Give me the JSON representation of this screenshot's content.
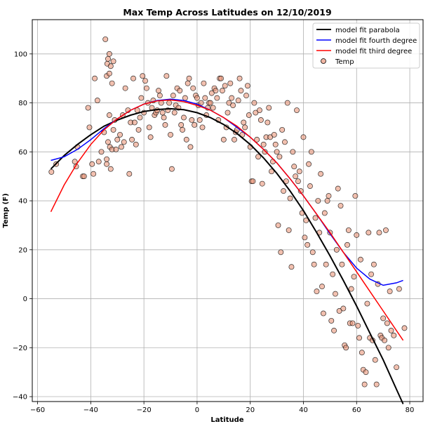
{
  "chart_data": {
    "type": "scatter",
    "title": "Max Temp Across Latitudes on 12/10/2019",
    "xlabel": "Latitude",
    "ylabel": "Temp (F)",
    "xlim": [
      -62,
      85
    ],
    "ylim": [
      -42,
      114
    ],
    "xticks": [
      -60,
      -40,
      -20,
      0,
      20,
      40,
      60,
      80
    ],
    "yticks": [
      -40,
      -20,
      0,
      20,
      40,
      60,
      80,
      100
    ],
    "grid": true,
    "legend_position": "top-right",
    "scatter": {
      "name": "Temp",
      "color": "#e9967a",
      "edge": "#000000",
      "points": [
        [
          -54.8,
          51.8
        ],
        [
          -53,
          55
        ],
        [
          -46,
          56
        ],
        [
          -45.5,
          54
        ],
        [
          -45,
          62
        ],
        [
          -43,
          50
        ],
        [
          -42.5,
          50
        ],
        [
          -41,
          78
        ],
        [
          -40.5,
          70
        ],
        [
          -39.5,
          55
        ],
        [
          -39,
          51
        ],
        [
          -38.5,
          90
        ],
        [
          -37.5,
          81
        ],
        [
          -37,
          56
        ],
        [
          -36,
          60
        ],
        [
          -35,
          68
        ],
        [
          -34.5,
          106
        ],
        [
          -34,
          91
        ],
        [
          -33.8,
          96
        ],
        [
          -33.5,
          98
        ],
        [
          -33,
          100
        ],
        [
          -33,
          92
        ],
        [
          -32.5,
          95
        ],
        [
          -32,
          88
        ],
        [
          -31.5,
          97
        ],
        [
          -34,
          55
        ],
        [
          -34,
          57
        ],
        [
          -33.5,
          64
        ],
        [
          -33,
          75
        ],
        [
          -32.8,
          62
        ],
        [
          -32.5,
          53
        ],
        [
          -32,
          61
        ],
        [
          -31.5,
          69
        ],
        [
          -31,
          73
        ],
        [
          -30.5,
          61
        ],
        [
          -30,
          65
        ],
        [
          -29,
          67
        ],
        [
          -28.5,
          62
        ],
        [
          -28,
          75
        ],
        [
          -27.5,
          64
        ],
        [
          -27,
          86
        ],
        [
          -26,
          77
        ],
        [
          -25.5,
          51
        ],
        [
          -25,
          72
        ],
        [
          -24.5,
          65
        ],
        [
          -24,
          90
        ],
        [
          -23.5,
          72
        ],
        [
          -23,
          63
        ],
        [
          -22.5,
          77
        ],
        [
          -22,
          69
        ],
        [
          -21.5,
          74
        ],
        [
          -21,
          82
        ],
        [
          -20.5,
          91
        ],
        [
          -20,
          76
        ],
        [
          -19.5,
          89
        ],
        [
          -19,
          86
        ],
        [
          -18.5,
          80
        ],
        [
          -18,
          70
        ],
        [
          -17.5,
          66
        ],
        [
          -17,
          78
        ],
        [
          -16.5,
          81
        ],
        [
          -16,
          75
        ],
        [
          -15.5,
          76
        ],
        [
          -15,
          77
        ],
        [
          -14.5,
          85
        ],
        [
          -14,
          83
        ],
        [
          -13.5,
          80
        ],
        [
          -13,
          76
        ],
        [
          -12.5,
          74
        ],
        [
          -12,
          71
        ],
        [
          -11.5,
          91
        ],
        [
          -11,
          77
        ],
        [
          -10.5,
          80
        ],
        [
          -10,
          67
        ],
        [
          -9.5,
          53
        ],
        [
          -9,
          83
        ],
        [
          -8.5,
          76
        ],
        [
          -8,
          79
        ],
        [
          -7.5,
          86
        ],
        [
          -7,
          78
        ],
        [
          -6.5,
          85
        ],
        [
          -6,
          71
        ],
        [
          -5.5,
          69
        ],
        [
          -5,
          74
        ],
        [
          -4.5,
          82
        ],
        [
          -4,
          65
        ],
        [
          -3.5,
          88
        ],
        [
          -3,
          90
        ],
        [
          -2.5,
          62
        ],
        [
          -2,
          73
        ],
        [
          -1.5,
          86
        ],
        [
          -1,
          71
        ],
        [
          -0.5,
          83
        ],
        [
          0,
          82
        ],
        [
          0.5,
          79
        ],
        [
          1,
          73
        ],
        [
          1.5,
          80
        ],
        [
          2,
          70
        ],
        [
          2.5,
          88
        ],
        [
          3,
          82
        ],
        [
          3.5,
          75
        ],
        [
          4,
          78
        ],
        [
          4.5,
          80
        ],
        [
          5,
          80
        ],
        [
          5.5,
          84
        ],
        [
          6,
          78
        ],
        [
          6.5,
          86
        ],
        [
          7,
          85
        ],
        [
          7.5,
          82
        ],
        [
          8,
          73
        ],
        [
          8.5,
          90
        ],
        [
          9,
          90
        ],
        [
          9.5,
          85
        ],
        [
          10,
          65
        ],
        [
          10.5,
          87
        ],
        [
          11,
          70
        ],
        [
          11.5,
          76
        ],
        [
          12,
          80
        ],
        [
          12.5,
          88
        ],
        [
          13,
          82
        ],
        [
          13.5,
          79
        ],
        [
          14,
          65
        ],
        [
          14.5,
          68
        ],
        [
          15,
          69
        ],
        [
          15.5,
          81
        ],
        [
          16,
          90
        ],
        [
          16.5,
          85
        ],
        [
          17,
          67
        ],
        [
          17.5,
          72
        ],
        [
          18,
          70
        ],
        [
          18.5,
          83
        ],
        [
          19,
          87
        ],
        [
          19.5,
          75
        ],
        [
          20,
          62
        ],
        [
          20.5,
          48
        ],
        [
          21,
          48
        ],
        [
          21.5,
          80
        ],
        [
          22,
          76
        ],
        [
          22.5,
          65
        ],
        [
          23,
          58
        ],
        [
          23.5,
          77
        ],
        [
          24,
          73
        ],
        [
          24.5,
          47
        ],
        [
          25,
          63
        ],
        [
          25.5,
          60
        ],
        [
          26,
          66
        ],
        [
          26.5,
          72
        ],
        [
          27,
          78
        ],
        [
          27.5,
          66
        ],
        [
          28,
          52
        ],
        [
          28.5,
          56
        ],
        [
          29,
          67
        ],
        [
          29.5,
          63
        ],
        [
          30,
          60
        ],
        [
          30.5,
          30
        ],
        [
          31,
          58
        ],
        [
          31.5,
          19
        ],
        [
          32,
          69
        ],
        [
          32.5,
          44
        ],
        [
          33,
          64
        ],
        [
          33.5,
          48
        ],
        [
          34,
          80
        ],
        [
          34.5,
          28
        ],
        [
          35,
          41
        ],
        [
          35.5,
          13
        ],
        [
          36,
          60
        ],
        [
          36.5,
          54
        ],
        [
          37,
          50
        ],
        [
          37.5,
          77
        ],
        [
          38,
          48
        ],
        [
          38.5,
          52
        ],
        [
          39,
          44
        ],
        [
          39.5,
          35
        ],
        [
          40,
          66
        ],
        [
          40.5,
          25
        ],
        [
          41,
          32
        ],
        [
          41.5,
          22
        ],
        [
          42,
          55
        ],
        [
          42.5,
          46
        ],
        [
          43,
          60
        ],
        [
          43.5,
          19
        ],
        [
          44,
          14
        ],
        [
          44.5,
          33
        ],
        [
          45,
          3
        ],
        [
          45.5,
          40
        ],
        [
          46,
          27
        ],
        [
          46.5,
          51
        ],
        [
          47,
          5
        ],
        [
          47.5,
          -6
        ],
        [
          48,
          35
        ],
        [
          48.5,
          14
        ],
        [
          49,
          40
        ],
        [
          49.5,
          42
        ],
        [
          50,
          27
        ],
        [
          50.5,
          -9
        ],
        [
          51,
          10
        ],
        [
          51.5,
          -13
        ],
        [
          52,
          2
        ],
        [
          52.5,
          20
        ],
        [
          53,
          45
        ],
        [
          53.5,
          -5
        ],
        [
          54,
          38
        ],
        [
          54.5,
          14
        ],
        [
          55,
          -4
        ],
        [
          55.5,
          -19
        ],
        [
          56,
          -20
        ],
        [
          56.5,
          22
        ],
        [
          57,
          28
        ],
        [
          57.5,
          -10
        ],
        [
          58,
          4
        ],
        [
          58.5,
          -10
        ],
        [
          59,
          9
        ],
        [
          59.5,
          42
        ],
        [
          60,
          26
        ],
        [
          60.5,
          -11
        ],
        [
          61,
          -16
        ],
        [
          61.5,
          16
        ],
        [
          62,
          -22
        ],
        [
          62.5,
          -29
        ],
        [
          63,
          -35
        ],
        [
          63.5,
          -30
        ],
        [
          64,
          -2
        ],
        [
          64.5,
          27
        ],
        [
          65,
          -16
        ],
        [
          65.5,
          10
        ],
        [
          66,
          -17
        ],
        [
          66.5,
          14
        ],
        [
          67,
          -25
        ],
        [
          67.5,
          -35
        ],
        [
          68,
          6
        ],
        [
          68.5,
          27
        ],
        [
          69,
          -15
        ],
        [
          69.5,
          -16
        ],
        [
          70,
          -8
        ],
        [
          70.5,
          -17
        ],
        [
          71,
          28
        ],
        [
          71.5,
          -10
        ],
        [
          72,
          -20
        ],
        [
          72.5,
          3
        ],
        [
          73,
          -13
        ],
        [
          74,
          -15
        ],
        [
          75,
          -28
        ],
        [
          76,
          4
        ],
        [
          78,
          -12
        ]
      ]
    },
    "series": [
      {
        "name": "model fit parabola",
        "color": "#000000",
        "x": [
          -55,
          -50,
          -45,
          -40,
          -35,
          -30,
          -25,
          -20,
          -15,
          -10,
          -5,
          0,
          5,
          10,
          15,
          20,
          25,
          30,
          35,
          40,
          45,
          50,
          55,
          60,
          65,
          70,
          75,
          77.5
        ],
        "y": [
          53,
          58.5,
          63,
          67,
          70.5,
          73,
          75,
          76.5,
          77.3,
          77.6,
          77.2,
          76,
          74,
          71.2,
          67.5,
          63,
          57.5,
          51.2,
          44,
          36,
          27,
          17.5,
          7.5,
          -3,
          -14,
          -25,
          -37,
          -43
        ]
      },
      {
        "name": "model fit fourth degree",
        "color": "#0000ff",
        "x": [
          -55,
          -50,
          -45,
          -40,
          -35,
          -30,
          -25,
          -20,
          -15,
          -10,
          -5,
          0,
          5,
          10,
          15,
          20,
          25,
          30,
          35,
          40,
          45,
          50,
          55,
          60,
          65,
          70,
          75,
          77.5
        ],
        "y": [
          56.5,
          58,
          61,
          65,
          69.5,
          73.5,
          77,
          79.5,
          81,
          81.5,
          81,
          79.5,
          77,
          74,
          70,
          66,
          61,
          55.5,
          49,
          42,
          34.5,
          26.5,
          19,
          12.5,
          8,
          5.5,
          6.5,
          7.5
        ]
      },
      {
        "name": "model fit third degree",
        "color": "#ff0000",
        "x": [
          -55,
          -50,
          -45,
          -40,
          -35,
          -30,
          -25,
          -20,
          -15,
          -10,
          -5,
          0,
          5,
          10,
          15,
          20,
          25,
          30,
          35,
          40,
          45,
          50,
          55,
          60,
          65,
          70,
          75,
          77.5
        ],
        "y": [
          35.5,
          46.5,
          55.5,
          63,
          69,
          73.5,
          77,
          79.5,
          80.8,
          81.2,
          80.5,
          79,
          77,
          74,
          70.5,
          66,
          61,
          55.5,
          49,
          42,
          34.5,
          27,
          19,
          11,
          3,
          -5,
          -13,
          -17
        ]
      }
    ]
  }
}
